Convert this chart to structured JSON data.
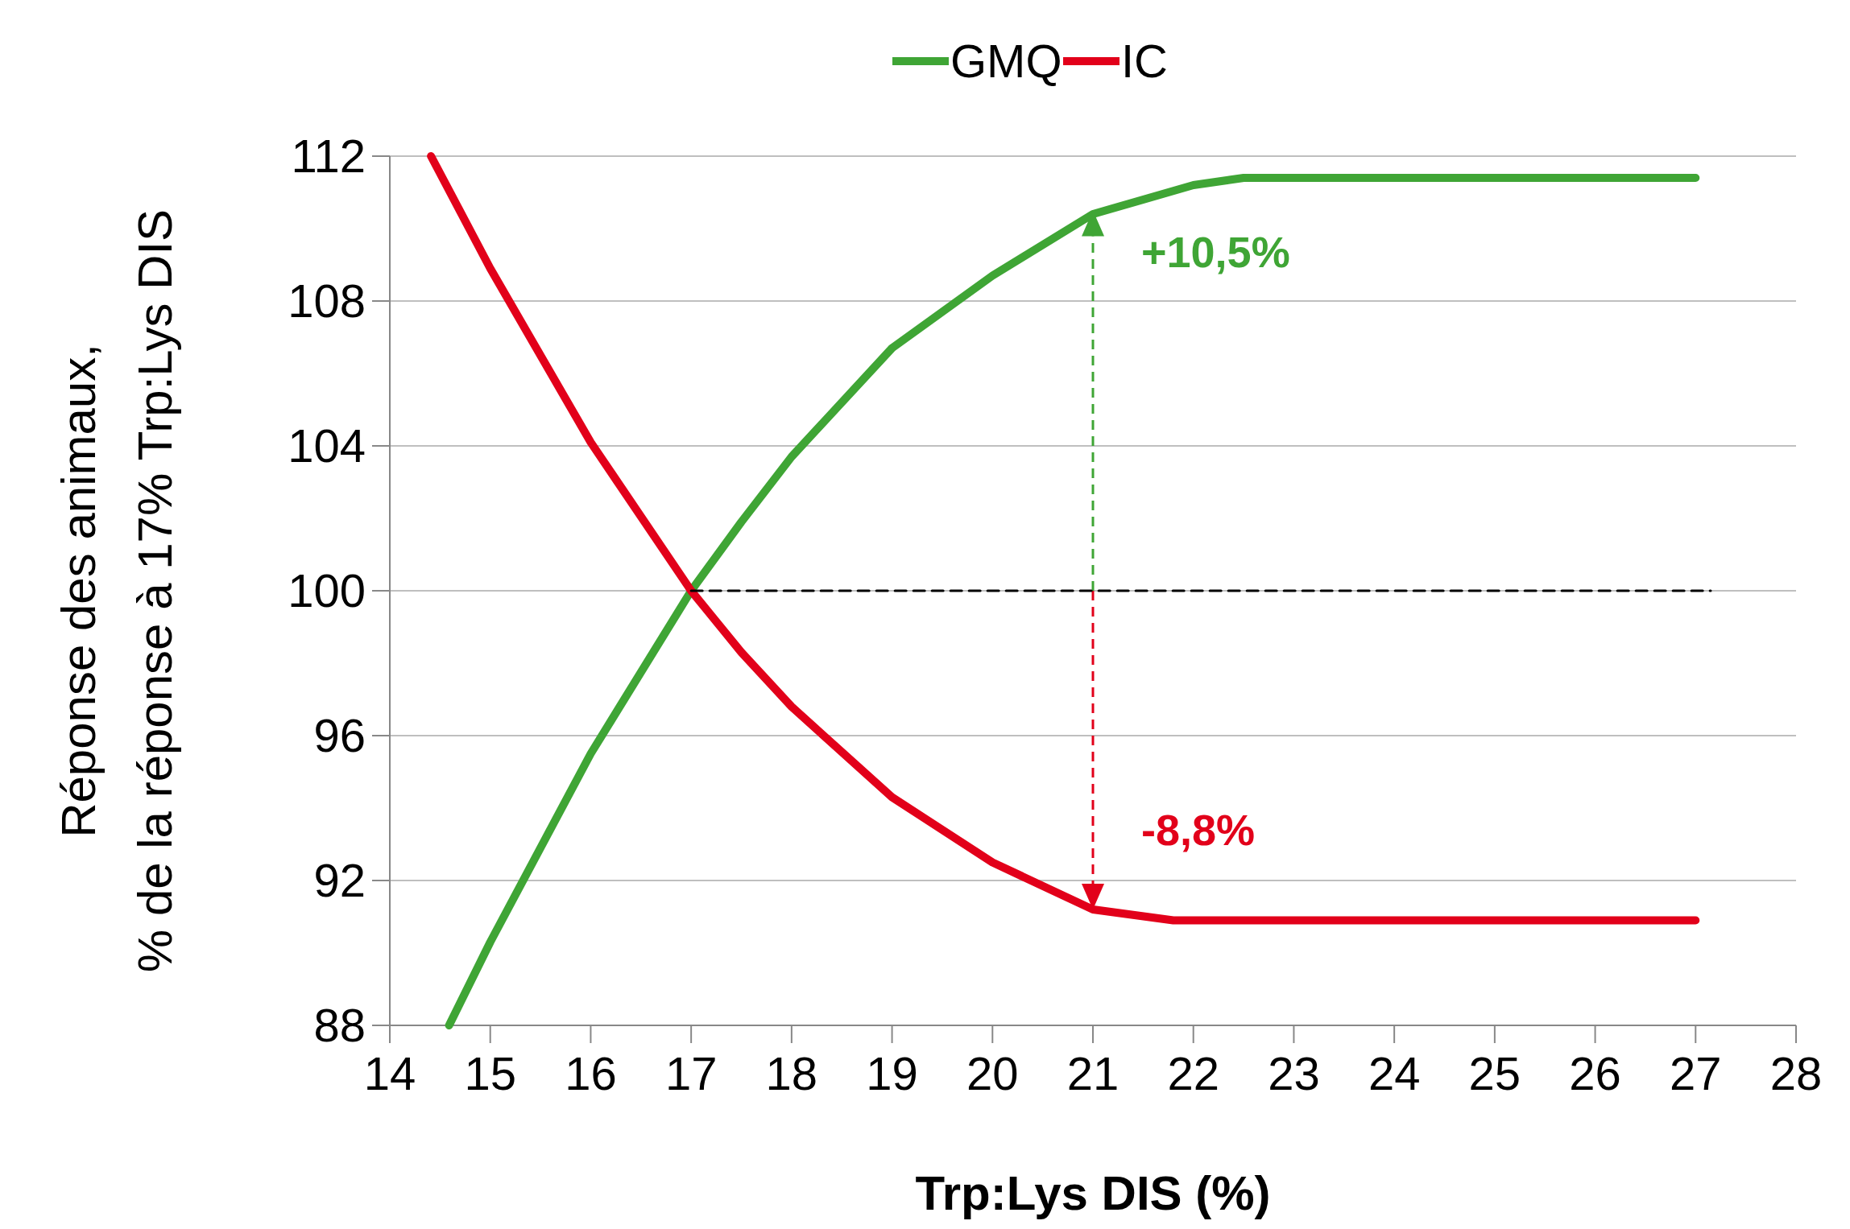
{
  "chart_data": {
    "type": "line",
    "xlabel": "Trp:Lys DIS (%)",
    "ylabel": "Réponse des animaux,\n% de la réponse à 17% Trp:Lys DIS",
    "xlim": [
      14,
      28
    ],
    "xticks": [
      14,
      15,
      16,
      17,
      18,
      19,
      20,
      21,
      22,
      23,
      24,
      25,
      26,
      27,
      28
    ],
    "ylim": [
      88,
      112
    ],
    "yticks": [
      88,
      92,
      96,
      100,
      104,
      108,
      112
    ],
    "grid": "y",
    "legend": "top",
    "series": [
      {
        "name": "GMQ",
        "color": "#3fa535",
        "x": [
          14.59,
          15,
          16,
          17,
          17.5,
          18,
          19,
          20,
          21,
          22,
          22.5,
          27
        ],
        "values": [
          88,
          90.3,
          95.5,
          100,
          101.9,
          103.7,
          106.7,
          108.7,
          110.4,
          111.2,
          111.4,
          111.4
        ]
      },
      {
        "name": "IC",
        "color": "#e2001a",
        "x": [
          14.41,
          15,
          16,
          17,
          17.5,
          18,
          19,
          20,
          21,
          21.8,
          27
        ],
        "values": [
          112,
          108.9,
          104.1,
          100,
          98.3,
          96.8,
          94.3,
          92.5,
          91.2,
          90.9,
          90.9
        ]
      },
      {
        "type": "line",
        "color": "#000000",
        "line_style": "dashed",
        "x": [
          17,
          27.15
        ],
        "values": [
          100,
          100
        ]
      }
    ],
    "annotations": [
      {
        "text": "+10,5%",
        "x": 21,
        "y": 110.5
      },
      {
        "text": "-8,8%",
        "x": 21,
        "y": 91.2
      }
    ]
  }
}
